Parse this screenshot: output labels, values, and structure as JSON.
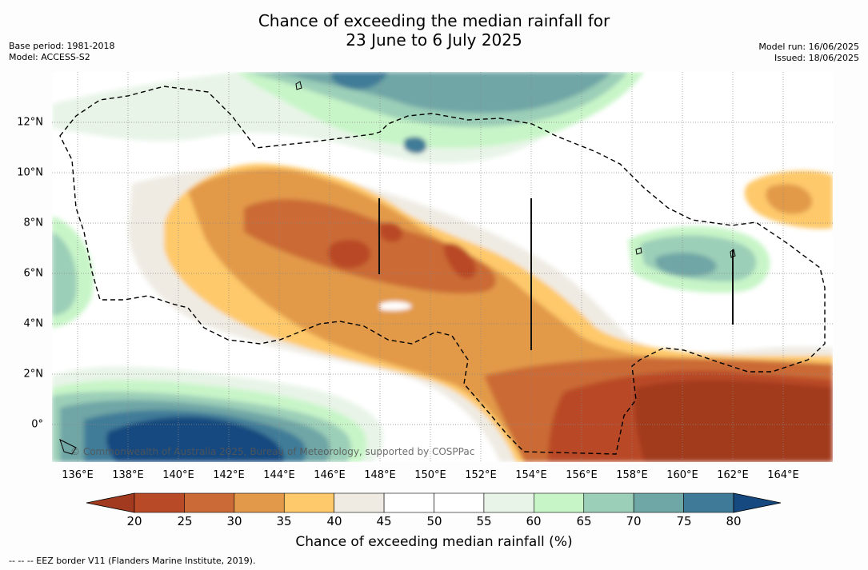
{
  "title_line1": "Chance of exceeding the median rainfall for",
  "title_line2": "23 June to 6 July 2025",
  "base_period": "Base period: 1981-2018",
  "model": "Model: ACCESS-S2",
  "model_run": "Model run: 16/06/2025",
  "issued": "Issued: 18/06/2025",
  "copyright": "© Commonwealth of Australia 2025, Bureau of Meteorology, supported by COSPPac",
  "lat_labels": [
    "12°N",
    "10°N",
    "8°N",
    "6°N",
    "4°N",
    "2°N",
    "0°"
  ],
  "lon_labels": [
    "136°E",
    "138°E",
    "140°E",
    "142°E",
    "144°E",
    "146°E",
    "148°E",
    "150°E",
    "152°E",
    "154°E",
    "156°E",
    "158°E",
    "160°E",
    "162°E",
    "164°E"
  ],
  "colorbar": {
    "ticks": [
      "20",
      "25",
      "30",
      "35",
      "40",
      "45",
      "50",
      "55",
      "60",
      "65",
      "70",
      "75",
      "80"
    ],
    "colors": [
      "#a23a1f",
      "#b94a28",
      "#cb6a36",
      "#e29a4a",
      "#fec96a",
      "#efebe3",
      "#ffffff",
      "#ffffff",
      "#e8f4e8",
      "#c8f5c8",
      "#9ccfb8",
      "#6fa6a6",
      "#3f7b98",
      "#15497f"
    ],
    "title": "Chance of exceeding median rainfall (%)"
  },
  "footnote": "--  --  -- EEZ border V11 (Flanders Marine Institute, 2019)."
}
